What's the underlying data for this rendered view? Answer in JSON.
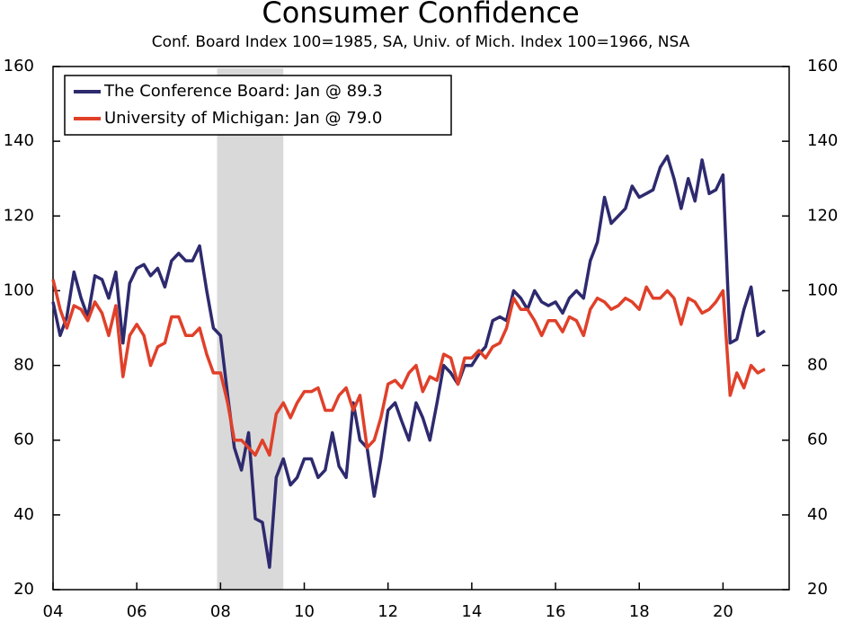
{
  "chart_data": {
    "type": "line",
    "title": "Consumer Confidence",
    "subtitle": "Conf. Board Index 100=1985, SA, Univ. of Mich. Index 100=1966, NSA",
    "x": [
      2004,
      2004.17,
      2004.33,
      2004.5,
      2004.67,
      2004.83,
      2005,
      2005.17,
      2005.33,
      2005.5,
      2005.67,
      2005.83,
      2006,
      2006.17,
      2006.33,
      2006.5,
      2006.67,
      2006.83,
      2007,
      2007.17,
      2007.33,
      2007.5,
      2007.67,
      2007.83,
      2008,
      2008.17,
      2008.33,
      2008.5,
      2008.67,
      2008.83,
      2009,
      2009.17,
      2009.33,
      2009.5,
      2009.67,
      2009.83,
      2010,
      2010.17,
      2010.33,
      2010.5,
      2010.67,
      2010.83,
      2011,
      2011.17,
      2011.33,
      2011.5,
      2011.67,
      2011.83,
      2012,
      2012.17,
      2012.33,
      2012.5,
      2012.67,
      2012.83,
      2013,
      2013.17,
      2013.33,
      2013.5,
      2013.67,
      2013.83,
      2014,
      2014.17,
      2014.33,
      2014.5,
      2014.67,
      2014.83,
      2015,
      2015.17,
      2015.33,
      2015.5,
      2015.67,
      2015.83,
      2016,
      2016.17,
      2016.33,
      2016.5,
      2016.67,
      2016.83,
      2017,
      2017.17,
      2017.33,
      2017.5,
      2017.67,
      2017.83,
      2018,
      2018.17,
      2018.33,
      2018.5,
      2018.67,
      2018.83,
      2019,
      2019.17,
      2019.33,
      2019.5,
      2019.67,
      2019.83,
      2020,
      2020.17,
      2020.33,
      2020.5,
      2020.67,
      2020.83,
      2021
    ],
    "series": [
      {
        "name": "The Conference Board: Jan @ 89.3",
        "color": "#2e2a6e",
        "values": [
          97,
          88,
          93,
          105,
          98,
          93,
          104,
          103,
          98,
          105,
          86,
          102,
          106,
          107,
          104,
          106,
          101,
          108,
          110,
          108,
          108,
          112,
          100,
          90,
          88,
          72,
          58,
          52,
          62,
          39,
          38,
          26,
          50,
          55,
          48,
          50,
          55,
          55,
          50,
          52,
          62,
          53,
          50,
          70,
          60,
          58,
          45,
          55,
          68,
          70,
          65,
          60,
          70,
          66,
          60,
          70,
          80,
          78,
          75,
          80,
          80,
          83,
          85,
          92,
          93,
          92,
          100,
          98,
          95,
          100,
          97,
          96,
          97,
          94,
          98,
          100,
          98,
          108,
          113,
          125,
          118,
          120,
          122,
          128,
          125,
          126,
          127,
          133,
          136,
          130,
          122,
          130,
          124,
          135,
          126,
          127,
          131,
          86,
          87,
          95,
          101,
          88,
          89.3
        ]
      },
      {
        "name": "University of Michigan: Jan @ 79.0",
        "color": "#e0402a",
        "values": [
          103,
          95,
          90,
          96,
          95,
          92,
          97,
          94,
          88,
          96,
          77,
          88,
          91,
          88,
          80,
          85,
          86,
          93,
          93,
          88,
          88,
          90,
          83,
          78,
          78,
          70,
          60,
          60,
          58,
          56,
          60,
          56,
          67,
          70,
          66,
          70,
          73,
          73,
          74,
          68,
          68,
          72,
          74,
          68,
          72,
          58,
          60,
          66,
          75,
          76,
          74,
          78,
          80,
          73,
          77,
          76,
          83,
          82,
          75,
          82,
          82,
          84,
          82,
          85,
          86,
          90,
          98,
          95,
          95,
          92,
          88,
          92,
          92,
          89,
          93,
          92,
          88,
          95,
          98,
          97,
          95,
          96,
          98,
          97,
          95,
          101,
          98,
          98,
          100,
          98,
          91,
          98,
          97,
          94,
          95,
          97,
          100,
          72,
          78,
          74,
          80,
          78,
          79.0
        ]
      }
    ],
    "shading": [
      2007.917,
      2009.5
    ],
    "xlim": [
      2004,
      2021.58
    ],
    "xticks": [
      {
        "value": 2004,
        "label": "04"
      },
      {
        "value": 2006,
        "label": "06"
      },
      {
        "value": 2008,
        "label": "08"
      },
      {
        "value": 2010,
        "label": "10"
      },
      {
        "value": 2012,
        "label": "12"
      },
      {
        "value": 2014,
        "label": "14"
      },
      {
        "value": 2016,
        "label": "16"
      },
      {
        "value": 2018,
        "label": "18"
      },
      {
        "value": 2020,
        "label": "20"
      }
    ],
    "ylim": [
      20,
      160
    ],
    "yticks": [
      20,
      40,
      60,
      80,
      100,
      120,
      140,
      160
    ],
    "legend": "upper left"
  }
}
